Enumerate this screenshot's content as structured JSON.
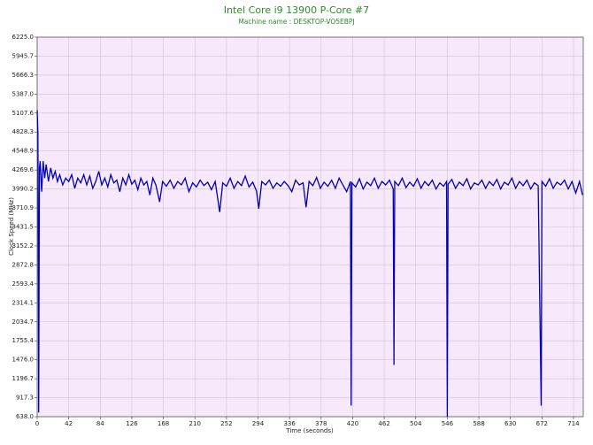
{
  "chart_data": {
    "type": "line",
    "title": "Intel Core i9 13900 P-Core #7",
    "subtitle": "Machine name : DESKTOP-VO5EBPJ",
    "x_label": "Time (seconds)",
    "y_label": "Clock Speed (MHz)",
    "color": "#0000b4",
    "background": "#f7e8fb",
    "grid": true,
    "xlim": [
      0,
      727
    ],
    "ylim": [
      638,
      6225
    ],
    "xticks": [
      0,
      42,
      84,
      126,
      168,
      210,
      252,
      294,
      336,
      378,
      420,
      462,
      504,
      546,
      588,
      630,
      672,
      714
    ],
    "yticks": [
      {
        "value": 638,
        "label": "638.0"
      },
      917.3,
      1196.7,
      {
        "value": 1476,
        "label": "1476.0"
      },
      1755.4,
      2034.7,
      2314.1,
      2593.4,
      2872.8,
      3152.2,
      3431.5,
      3710.9,
      3990.2,
      4269.6,
      4548.9,
      4828.3,
      5107.6,
      {
        "value": 5387,
        "label": "5387.0"
      },
      5666.3,
      5945.7,
      {
        "value": 6225,
        "label": "6225.0"
      }
    ],
    "x": [
      0,
      1,
      2,
      3,
      4,
      6,
      8,
      10,
      12,
      15,
      18,
      21,
      24,
      27,
      30,
      34,
      38,
      42,
      46,
      50,
      54,
      58,
      62,
      66,
      70,
      74,
      78,
      82,
      86,
      90,
      94,
      98,
      102,
      106,
      110,
      114,
      118,
      122,
      126,
      130,
      134,
      138,
      142,
      146,
      150,
      154,
      158,
      163,
      167,
      172,
      177,
      182,
      187,
      192,
      197,
      202,
      207,
      212,
      217,
      222,
      227,
      232,
      237,
      243,
      247,
      252,
      257,
      262,
      267,
      272,
      277,
      282,
      287,
      292,
      295,
      299,
      304,
      309,
      314,
      319,
      324,
      329,
      334,
      339,
      344,
      349,
      354,
      358,
      362,
      367,
      372,
      377,
      382,
      387,
      392,
      397,
      402,
      407,
      412,
      417,
      418,
      419,
      424,
      429,
      434,
      439,
      444,
      449,
      454,
      459,
      464,
      469,
      474,
      475,
      476,
      481,
      486,
      491,
      496,
      501,
      506,
      511,
      516,
      521,
      526,
      531,
      536,
      541,
      545,
      546,
      547,
      552,
      557,
      562,
      567,
      572,
      577,
      582,
      587,
      592,
      597,
      602,
      607,
      612,
      617,
      622,
      627,
      632,
      637,
      642,
      647,
      652,
      657,
      662,
      667,
      671,
      672,
      677,
      682,
      687,
      692,
      697,
      702,
      707,
      712,
      717,
      722,
      726
    ],
    "values": [
      5150,
      4800,
      700,
      4300,
      4400,
      3950,
      4400,
      4150,
      4350,
      4100,
      4300,
      4150,
      4250,
      4100,
      4200,
      4050,
      4150,
      4100,
      4200,
      4000,
      4150,
      4080,
      4200,
      4050,
      4180,
      4000,
      4100,
      4250,
      4050,
      4150,
      4020,
      4200,
      4080,
      4120,
      3950,
      4150,
      4050,
      4200,
      4060,
      4120,
      3980,
      4150,
      4050,
      4100,
      3900,
      4150,
      4050,
      3800,
      4100,
      4030,
      4120,
      4000,
      4100,
      4050,
      4150,
      3950,
      4080,
      4020,
      4120,
      4040,
      4090,
      3980,
      4100,
      3650,
      4080,
      4030,
      4150,
      4000,
      4100,
      4040,
      4180,
      4020,
      4090,
      3960,
      3700,
      4100,
      4050,
      4120,
      4000,
      4080,
      4030,
      4100,
      4040,
      3950,
      4120,
      4050,
      4080,
      3720,
      4100,
      4040,
      4160,
      4000,
      4090,
      4030,
      4120,
      4000,
      4150,
      4050,
      3950,
      4100,
      800,
      4080,
      4020,
      4140,
      3990,
      4090,
      4040,
      4150,
      4000,
      4100,
      4050,
      4120,
      3990,
      1400,
      4100,
      4040,
      4150,
      4010,
      4090,
      4030,
      4140,
      4000,
      4100,
      4040,
      4120,
      3990,
      4080,
      4030,
      4100,
      638,
      4060,
      4130,
      4000,
      4090,
      4040,
      4140,
      3990,
      4080,
      4050,
      4120,
      4000,
      4100,
      4040,
      4130,
      3990,
      4090,
      4050,
      4150,
      4000,
      4100,
      4040,
      4120,
      3990,
      4080,
      4040,
      800,
      4100,
      4030,
      4140,
      4000,
      4090,
      4050,
      4120,
      3990,
      4100,
      3930,
      4100,
      3900
    ]
  }
}
